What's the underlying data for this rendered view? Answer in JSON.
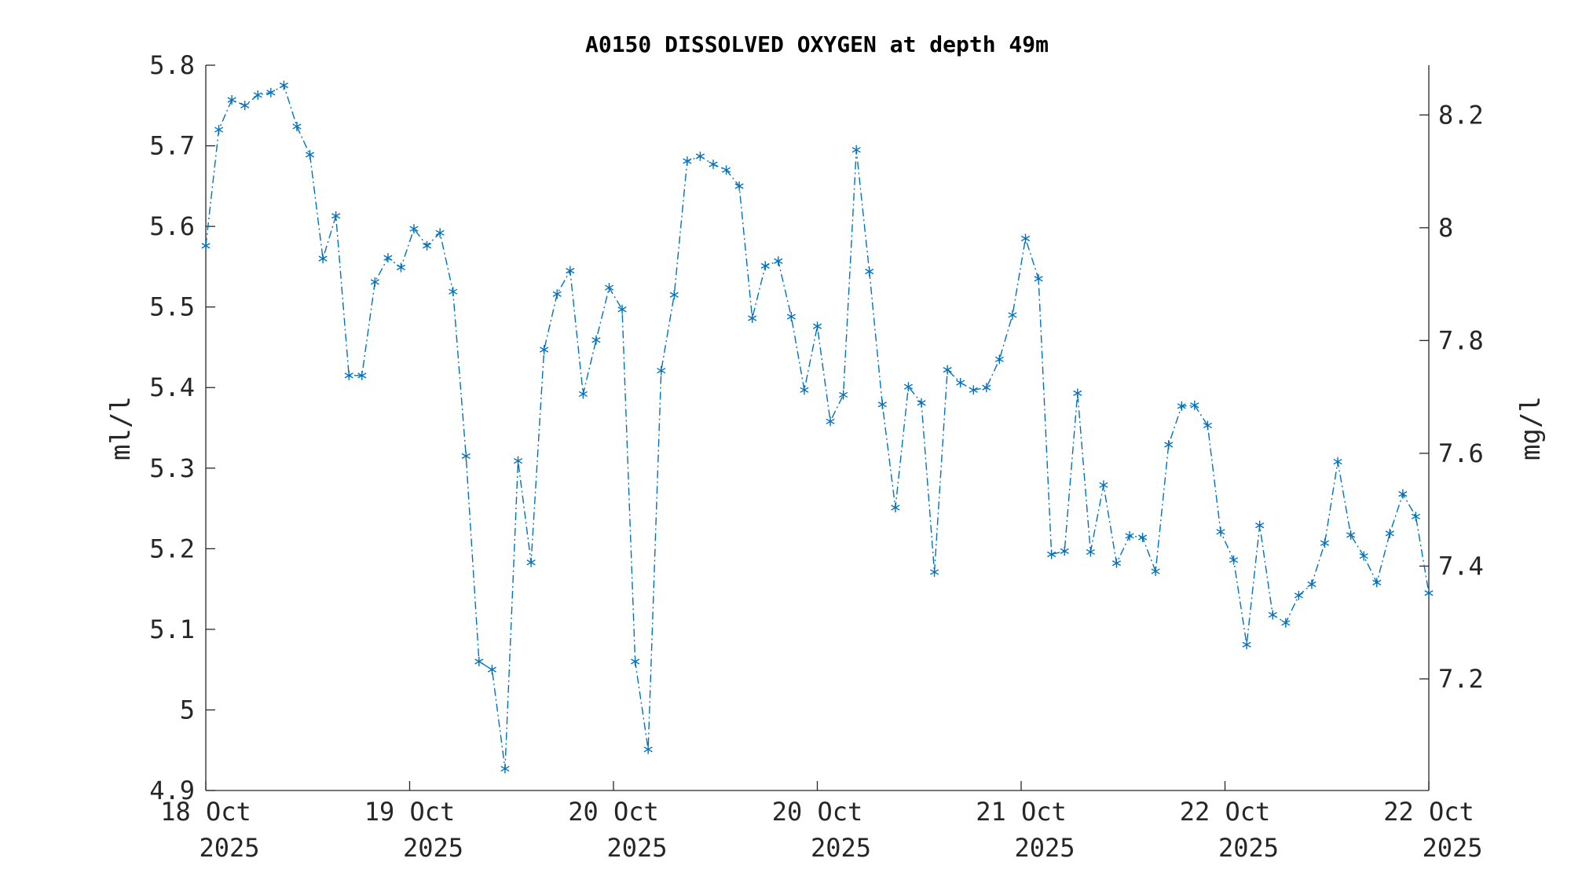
{
  "chart_data": {
    "type": "line",
    "title": "A0150 DISSOLVED OXYGEN at depth 49m",
    "ylabel": "ml/l",
    "ylabel_right": "mg/l",
    "ylim": [
      4.9,
      5.8
    ],
    "yticks": [
      "4.9",
      "5",
      "5.1",
      "5.2",
      "5.3",
      "5.4",
      "5.5",
      "5.6",
      "5.7",
      "5.8"
    ],
    "yticks_right": [
      "7.2",
      "7.4",
      "7.6",
      "7.8",
      "8",
      "8.2"
    ],
    "mgl_per_mll": 1.429,
    "xlim": [
      0,
      94
    ],
    "xticks": [
      {
        "day": "18 Oct",
        "year": "2025"
      },
      {
        "day": "19 Oct",
        "year": "2025"
      },
      {
        "day": "20 Oct",
        "year": "2025"
      },
      {
        "day": "20 Oct",
        "year": "2025"
      },
      {
        "day": "21 Oct",
        "year": "2025"
      },
      {
        "day": "22 Oct",
        "year": "2025"
      },
      {
        "day": "22 Oct",
        "year": "2025"
      }
    ],
    "line_color": "#0072BD",
    "marker": "asterisk",
    "line_style": "dash-dot",
    "grid": false,
    "series": [
      {
        "name": "Dissolved oxygen",
        "values": [
          5.576,
          5.72,
          5.757,
          5.75,
          5.763,
          5.766,
          5.775,
          5.724,
          5.689,
          5.56,
          5.613,
          5.415,
          5.415,
          5.531,
          5.561,
          5.549,
          5.597,
          5.576,
          5.592,
          5.519,
          5.315,
          5.06,
          5.05,
          4.927,
          5.309,
          5.183,
          5.447,
          5.516,
          5.545,
          5.392,
          5.459,
          5.524,
          5.497,
          5.06,
          4.951,
          5.421,
          5.515,
          5.681,
          5.687,
          5.677,
          5.67,
          5.65,
          5.486,
          5.551,
          5.557,
          5.488,
          5.397,
          5.476,
          5.358,
          5.391,
          5.695,
          5.544,
          5.379,
          5.251,
          5.401,
          5.381,
          5.171,
          5.422,
          5.406,
          5.397,
          5.4,
          5.435,
          5.49,
          5.585,
          5.535,
          5.193,
          5.197,
          5.393,
          5.196,
          5.279,
          5.182,
          5.216,
          5.214,
          5.172,
          5.329,
          5.377,
          5.378,
          5.353,
          5.221,
          5.186,
          5.081,
          5.229,
          5.118,
          5.108,
          5.142,
          5.156,
          5.207,
          5.308,
          5.217,
          5.191,
          5.158,
          5.219,
          5.268,
          5.24,
          5.145
        ]
      }
    ]
  }
}
